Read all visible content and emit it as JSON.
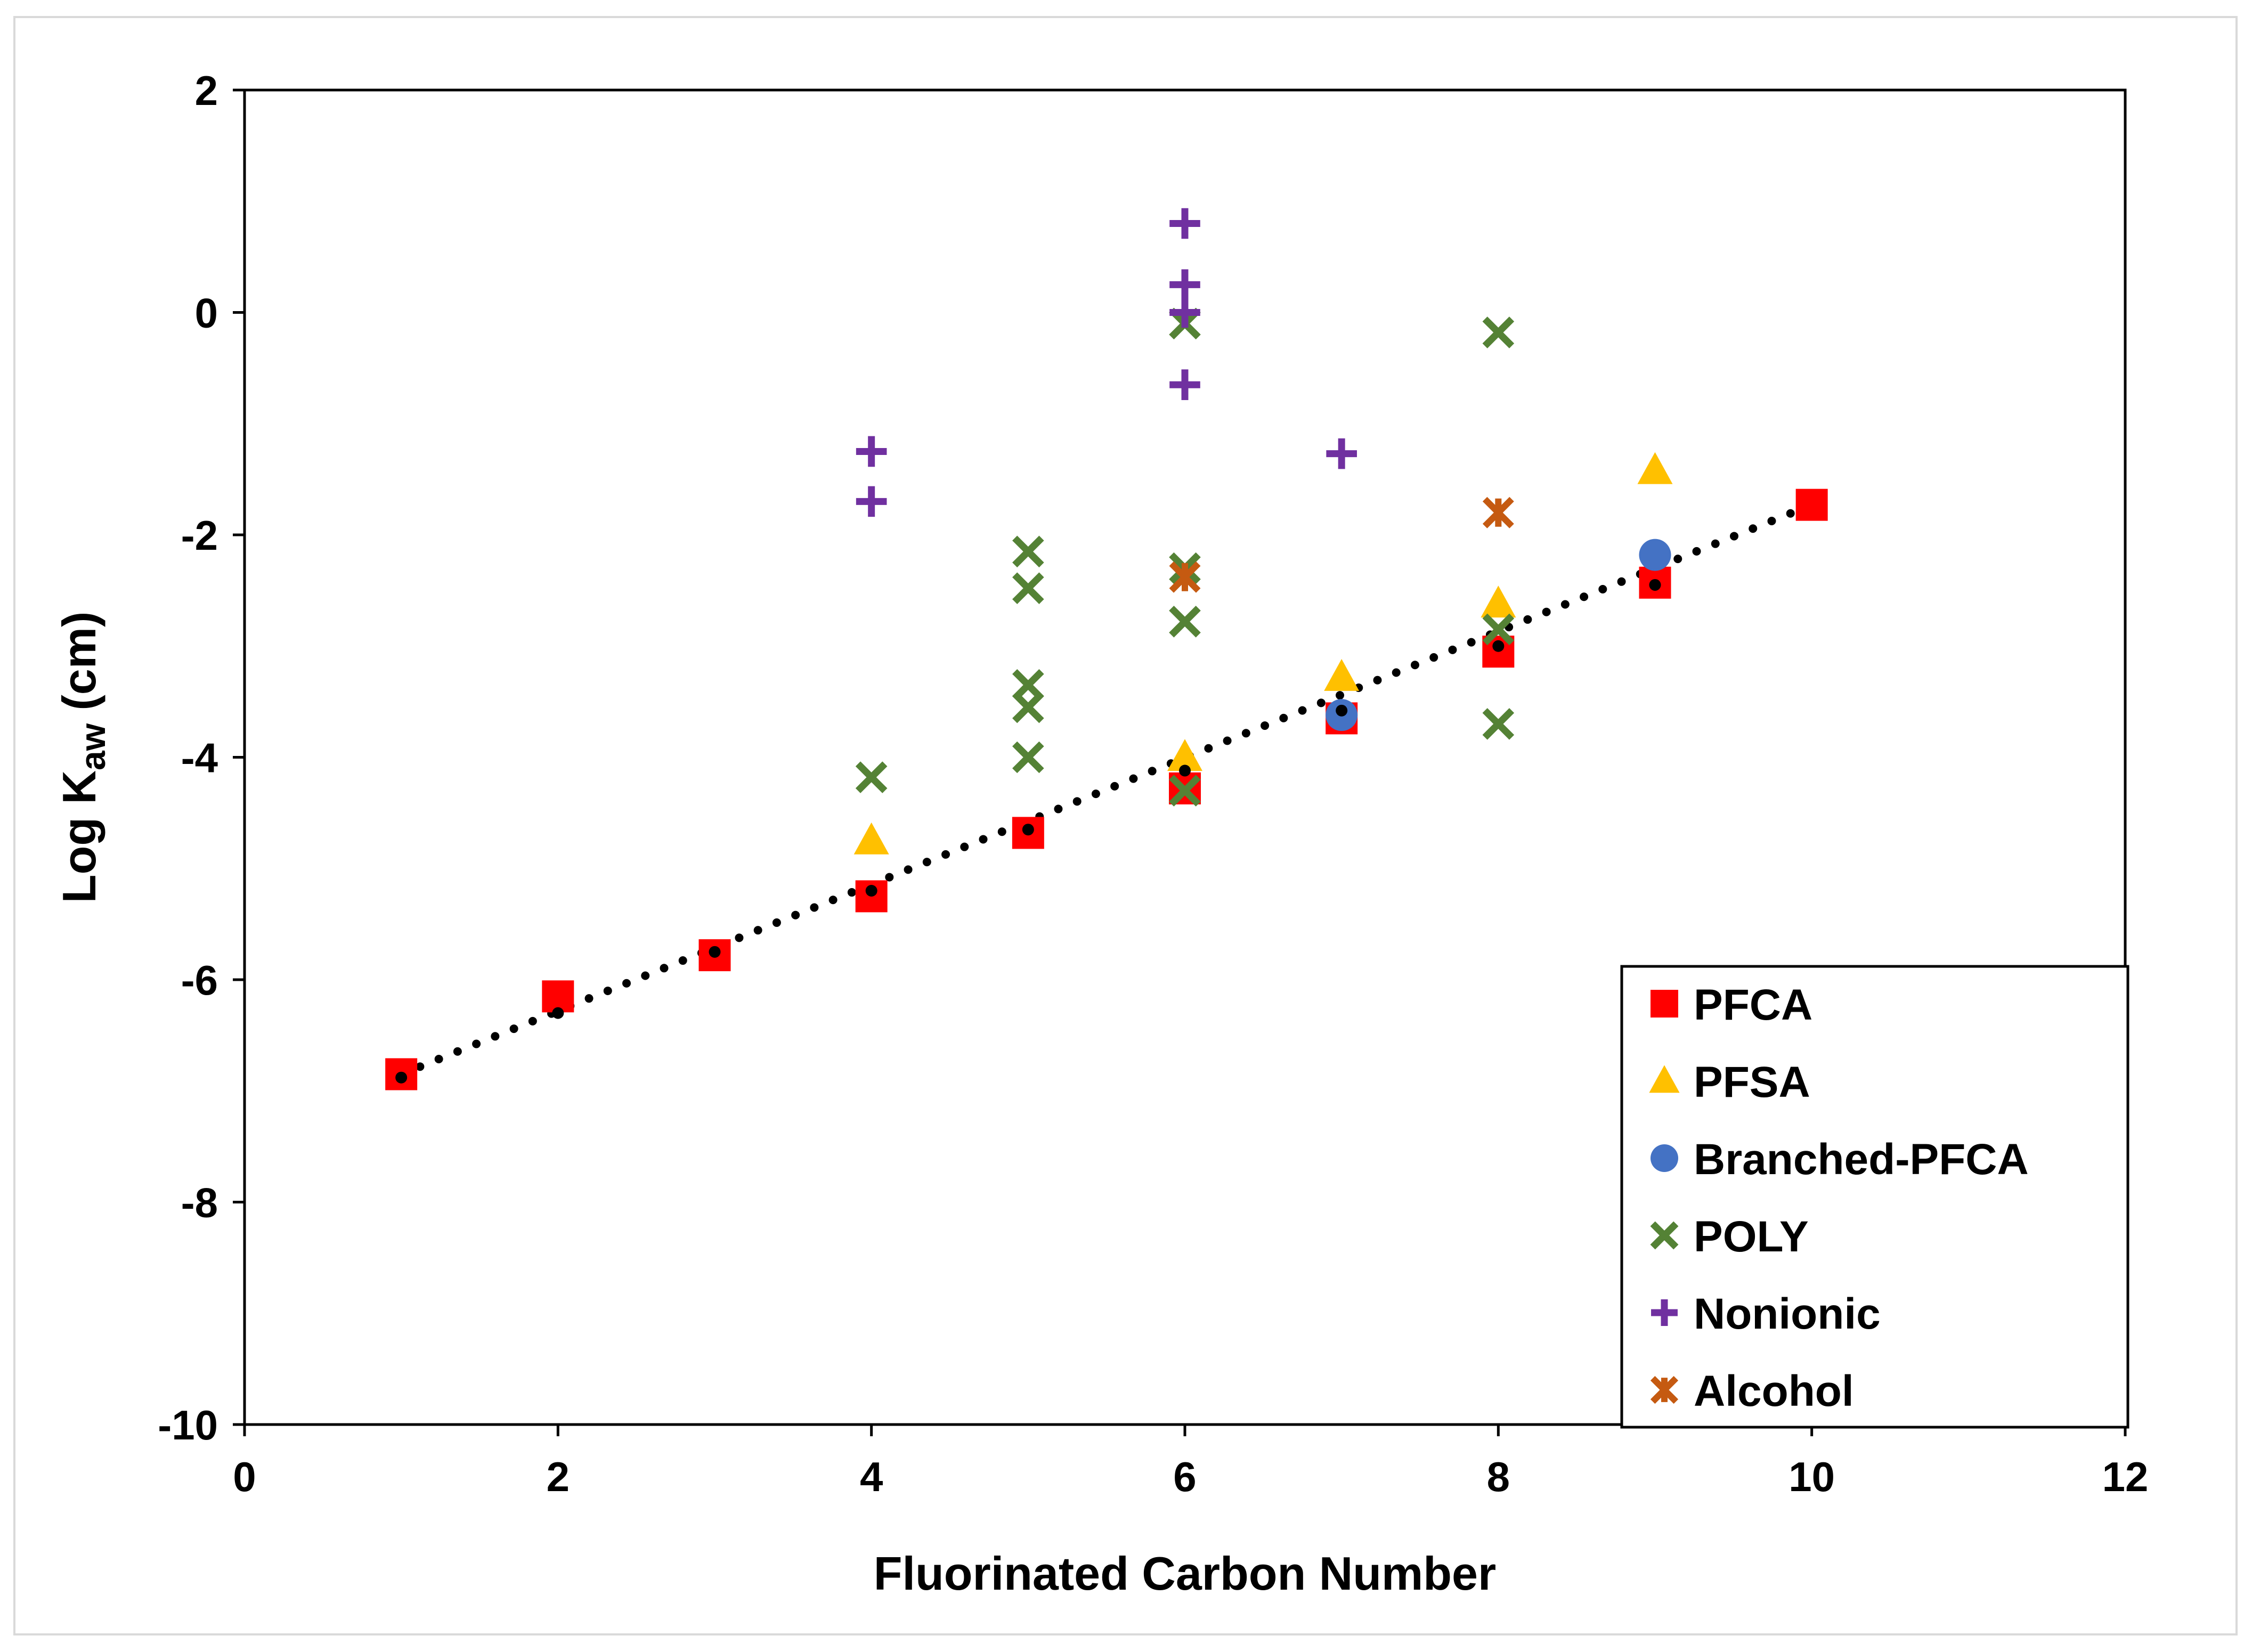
{
  "chart_data": {
    "type": "scatter",
    "title": "",
    "xlabel": "Fluorinated Carbon Number",
    "ylabel_main": "Log K",
    "ylabel_sub": "aw",
    "ylabel_unit": " (cm)",
    "xlim": [
      0,
      12
    ],
    "ylim": [
      -10,
      2
    ],
    "xticks": [
      0,
      2,
      4,
      6,
      8,
      10,
      12
    ],
    "yticks": [
      -10,
      -8,
      -6,
      -4,
      -2,
      0,
      2
    ],
    "grid": false,
    "legend_position": "bottom-right",
    "series": [
      {
        "name": "PFCA",
        "marker": "square",
        "color": "#ff0000",
        "points": [
          [
            1,
            -6.85
          ],
          [
            2,
            -6.15
          ],
          [
            3,
            -5.78
          ],
          [
            4,
            -5.25
          ],
          [
            5,
            -4.68
          ],
          [
            6,
            -4.28
          ],
          [
            7,
            -3.65
          ],
          [
            8,
            -3.05
          ],
          [
            9,
            -2.43
          ],
          [
            10,
            -1.73
          ]
        ]
      },
      {
        "name": "PFSA",
        "marker": "triangle",
        "color": "#ffc000",
        "points": [
          [
            4,
            -4.75
          ],
          [
            6,
            -4.0
          ],
          [
            7,
            -3.28
          ],
          [
            8,
            -2.62
          ],
          [
            9,
            -1.42
          ]
        ]
      },
      {
        "name": "Branched-PFCA",
        "marker": "circle",
        "color": "#4472c4",
        "points": [
          [
            7,
            -3.62
          ],
          [
            9,
            -2.18
          ]
        ]
      },
      {
        "name": "POLY",
        "marker": "x",
        "color": "#548235",
        "points": [
          [
            4,
            -4.18
          ],
          [
            5,
            -2.15
          ],
          [
            5,
            -2.48
          ],
          [
            5,
            -3.35
          ],
          [
            5,
            -3.55
          ],
          [
            5,
            -4.0
          ],
          [
            6,
            -0.1
          ],
          [
            6,
            -2.3
          ],
          [
            6,
            -2.78
          ],
          [
            6,
            -4.3
          ],
          [
            8,
            -0.18
          ],
          [
            8,
            -2.85
          ],
          [
            8,
            -3.7
          ]
        ]
      },
      {
        "name": "Nonionic",
        "marker": "plus",
        "color": "#7030a0",
        "points": [
          [
            4,
            -1.25
          ],
          [
            4,
            -1.7
          ],
          [
            6,
            0.8
          ],
          [
            6,
            0.25
          ],
          [
            6,
            0.0
          ],
          [
            6,
            -0.65
          ],
          [
            7,
            -1.27
          ]
        ]
      },
      {
        "name": "Alcohol",
        "marker": "asterisk",
        "color": "#c55a11",
        "points": [
          [
            6,
            -2.38
          ],
          [
            8,
            -1.8
          ]
        ]
      }
    ],
    "trendline": {
      "style": "dotted",
      "color": "#000000",
      "from": [
        1,
        -6.85
      ],
      "to": [
        10,
        -1.73
      ]
    },
    "trend_points": [
      [
        1,
        -6.88
      ],
      [
        2,
        -6.3
      ],
      [
        3,
        -5.75
      ],
      [
        4,
        -5.2
      ],
      [
        5,
        -4.65
      ],
      [
        6,
        -4.12
      ],
      [
        7,
        -3.58
      ],
      [
        8,
        -3.0
      ],
      [
        9,
        -2.45
      ]
    ]
  }
}
